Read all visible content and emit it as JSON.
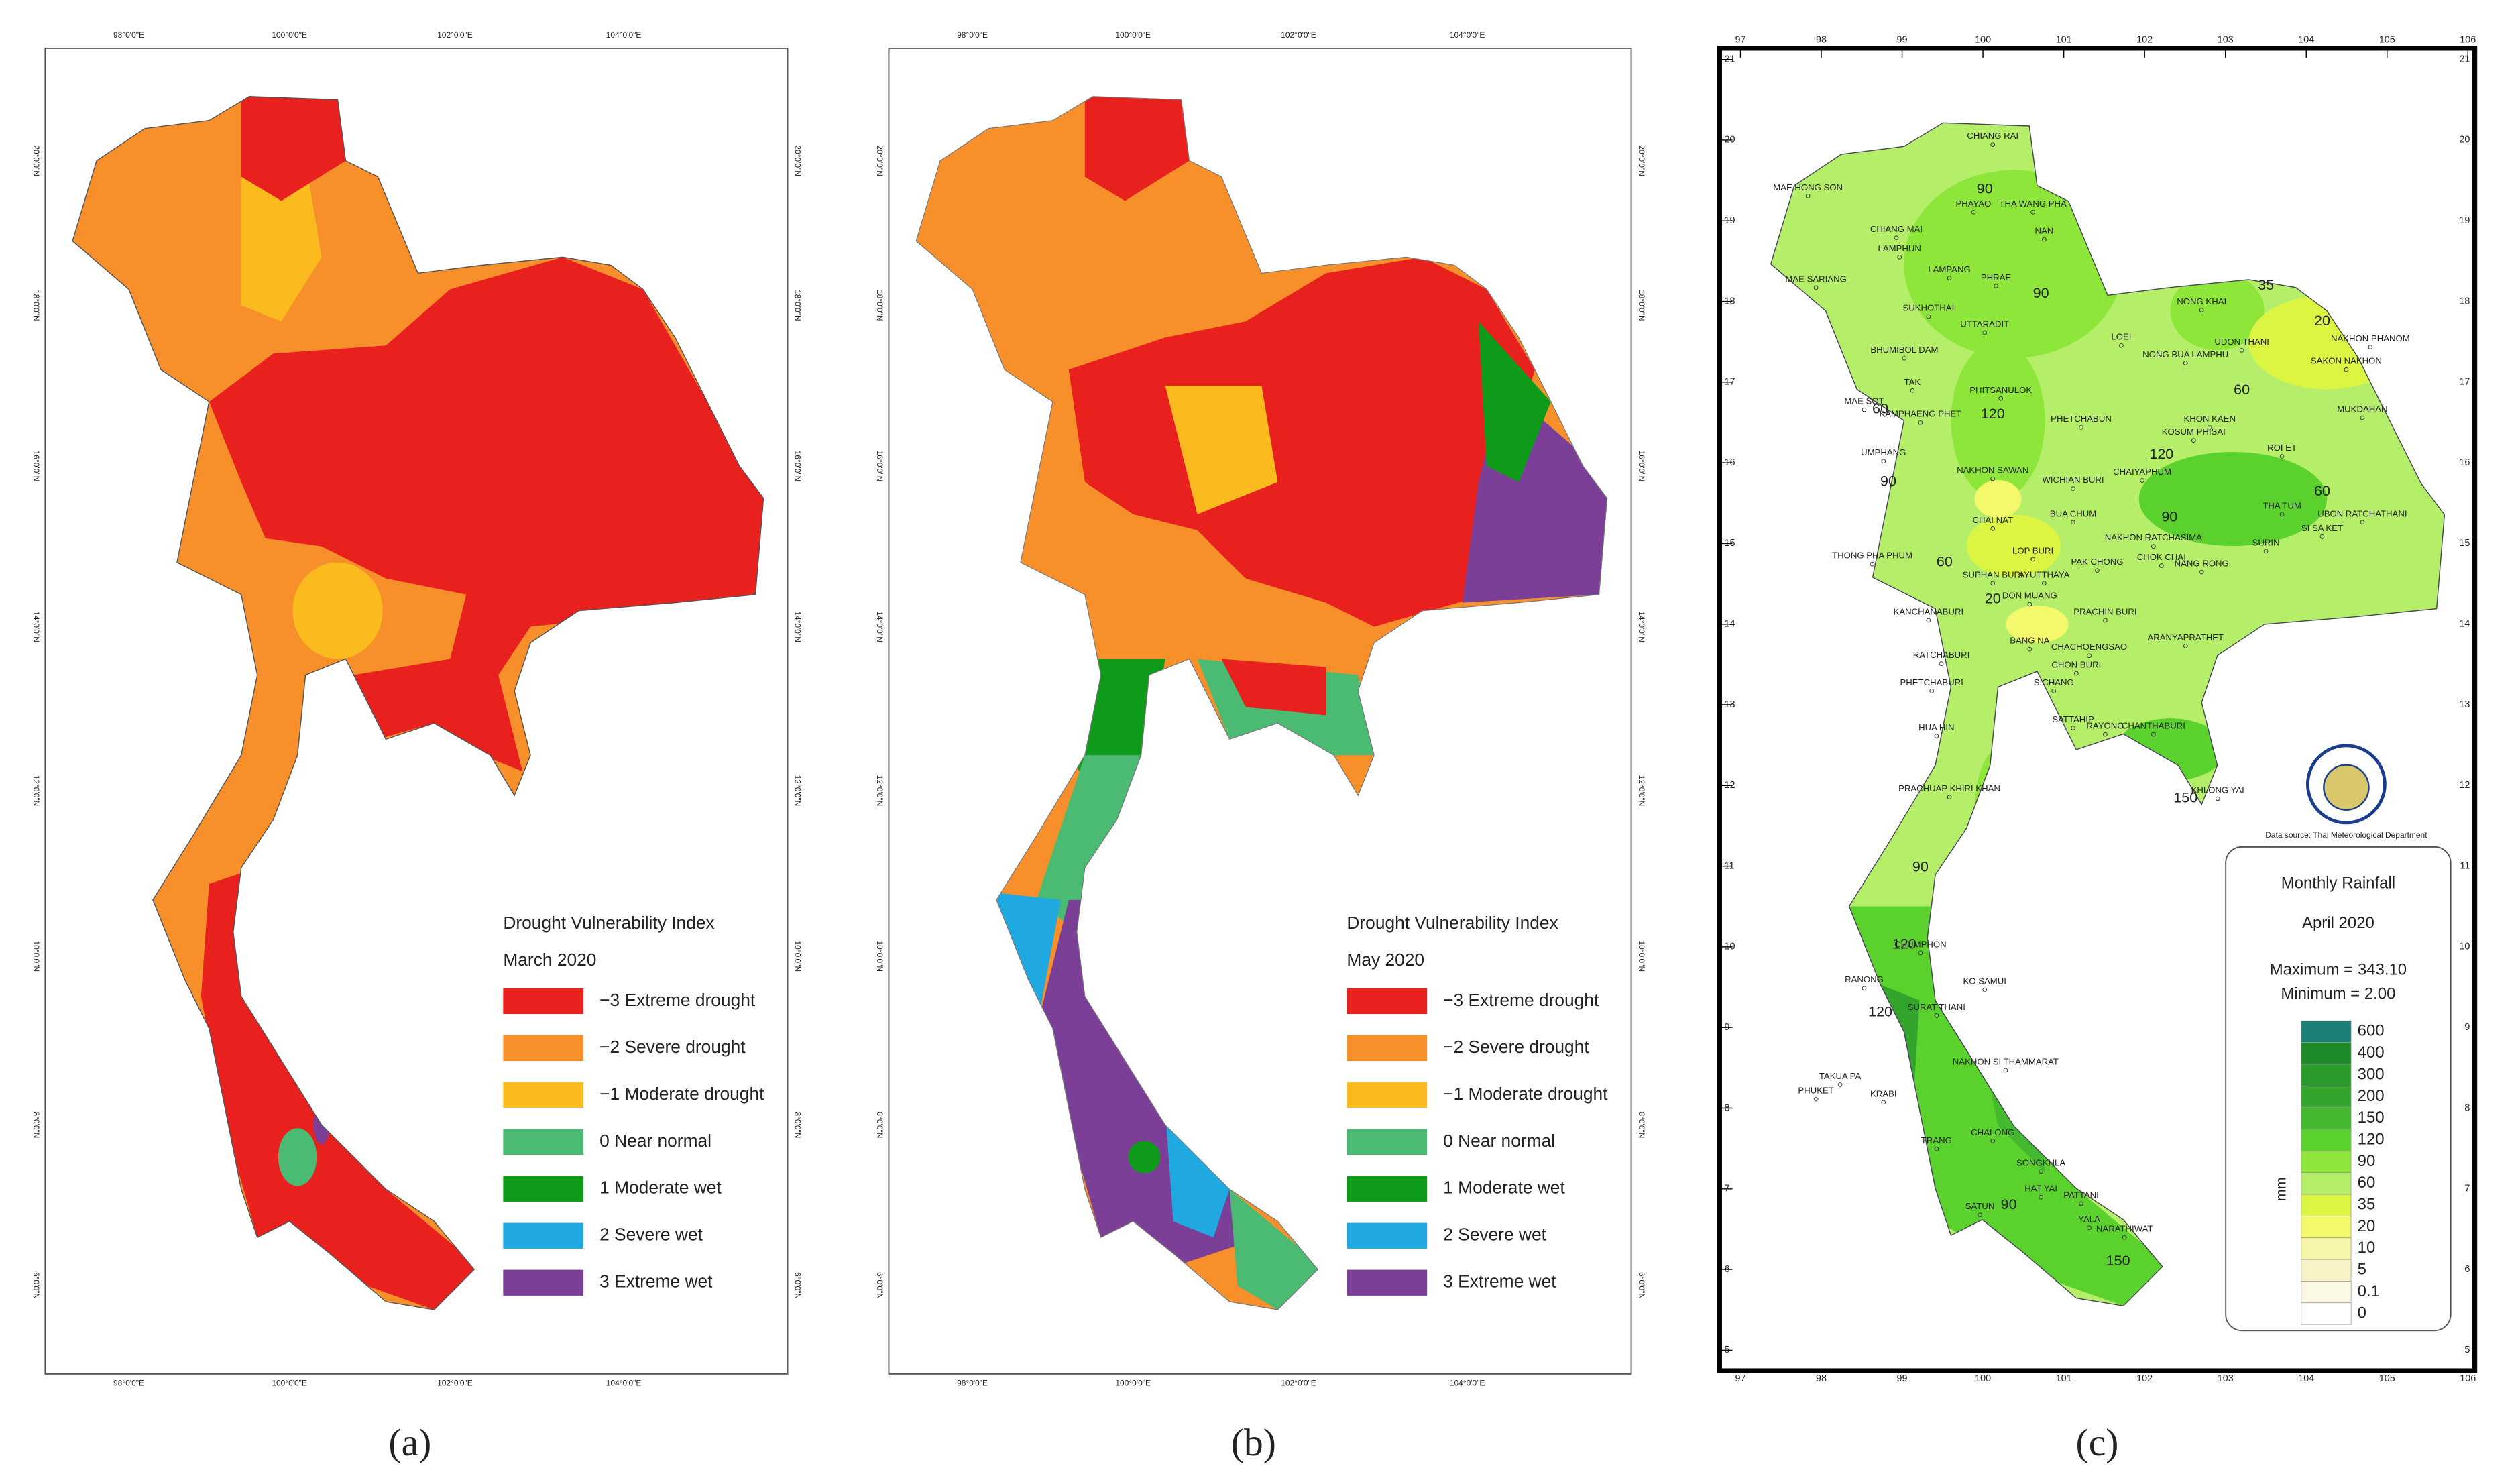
{
  "panels": [
    {
      "caption": "(a)",
      "legend": {
        "title": "Drought Vulnerability Index",
        "subtitle": "March 2020",
        "items": [
          {
            "label": "−3 Extreme drought",
            "color": "#e8201e"
          },
          {
            "label": "−2 Severe drought",
            "color": "#f7902b"
          },
          {
            "label": "−1 Moderate drought",
            "color": "#fbbb1f"
          },
          {
            "label": "0 Near normal",
            "color": "#4bba73"
          },
          {
            "label": "1 Moderate wet",
            "color": "#0e9b1a"
          },
          {
            "label": "2 Severe wet",
            "color": "#20a9e1"
          },
          {
            "label": "3 Extreme wet",
            "color": "#7b3f98"
          }
        ]
      },
      "lon_labels": [
        "98°0'0\"E",
        "100°0'0\"E",
        "102°0'0\"E",
        "104°0'0\"E"
      ],
      "lat_labels": [
        "20°0'0\"N",
        "18°0'0\"N",
        "16°0'0\"N",
        "14°0'0\"N",
        "12°0'0\"N",
        "10°0'0\"N",
        "8°0'0\"N",
        "6°0'0\"N"
      ]
    },
    {
      "caption": "(b)",
      "legend": {
        "title": "Drought Vulnerability Index",
        "subtitle": "May 2020",
        "items": [
          {
            "label": "−3 Extreme drought",
            "color": "#e8201e"
          },
          {
            "label": "−2 Severe drought",
            "color": "#f7902b"
          },
          {
            "label": "−1 Moderate drought",
            "color": "#fbbb1f"
          },
          {
            "label": "0 Near normal",
            "color": "#4bba73"
          },
          {
            "label": "1 Moderate wet",
            "color": "#0e9b1a"
          },
          {
            "label": "2 Severe wet",
            "color": "#20a9e1"
          },
          {
            "label": "3 Extreme wet",
            "color": "#7b3f98"
          }
        ]
      },
      "lon_labels": [
        "98°0'0\"E",
        "100°0'0\"E",
        "102°0'0\"E",
        "104°0'0\"E"
      ],
      "lat_labels": [
        "20°0'0\"N",
        "18°0'0\"N",
        "16°0'0\"N",
        "14°0'0\"N",
        "12°0'0\"N",
        "10°0'0\"N",
        "8°0'0\"N",
        "6°0'0\"N"
      ]
    },
    {
      "caption": "(c)",
      "legend": {
        "title": "Monthly Rainfall",
        "subtitle": "April 2020",
        "maximum": "Maximum = 343.10",
        "minimum": "Minimum = 2.00",
        "unit": "mm",
        "scale": [
          {
            "label": 600,
            "color": "#1b7f78"
          },
          {
            "label": 400,
            "color": "#1f8a2a"
          },
          {
            "label": 300,
            "color": "#2a9a2a"
          },
          {
            "label": 200,
            "color": "#33a52c"
          },
          {
            "label": 150,
            "color": "#44b82e"
          },
          {
            "label": 120,
            "color": "#5bd12e"
          },
          {
            "label": 90,
            "color": "#8ee63a"
          },
          {
            "label": 60,
            "color": "#b5ef6a"
          },
          {
            "label": 35,
            "color": "#dcf542"
          },
          {
            "label": 20,
            "color": "#f3f96b"
          },
          {
            "label": 10,
            "color": "#f7f5a8"
          },
          {
            "label": 5,
            "color": "#f8f4c8"
          },
          {
            "label": 0.1,
            "color": "#fbf9e6"
          },
          {
            "label": 0,
            "color": "#ffffff"
          }
        ]
      },
      "source": "Data source: Thai Meteorological Department",
      "lon_ticks": [
        97,
        98,
        99,
        100,
        101,
        102,
        103,
        104,
        105,
        106
      ],
      "lat_ticks": [
        21,
        20,
        19,
        18,
        17,
        16,
        15,
        14,
        13,
        12,
        11,
        10,
        9,
        8,
        7,
        6,
        5
      ],
      "cities": [
        "CHIANG RAI",
        "MAE HONG SON",
        "PHAYAO",
        "THA WANG PHA",
        "NAN",
        "CHIANG MAI",
        "LAMPHUN",
        "LAMPANG",
        "MAE SARIANG",
        "PHRAE",
        "SUKHOTHAI",
        "UTTARADIT",
        "BHUMIBOL DAM",
        "NONG KHAI",
        "LOEI",
        "UDON THANI",
        "NAKHON PHANOM",
        "NONG BUA LAMPHU",
        "SAKON NAKHON",
        "TAK",
        "PHITSANULOK",
        "MAE SOT",
        "PHETCHABUN",
        "KHON KAEN",
        "MUKDAHAN",
        "KAMPHAENG PHET",
        "KOSUM PHISAI",
        "ROI ET",
        "UMPHANG",
        "NAKHON SAWAN",
        "CHAIYAPHUM",
        "WICHIAN BURI",
        "THA TUM",
        "UBON RATCHATHANI",
        "CHAI NAT",
        "BUA CHUM",
        "NAKHON RATCHASIMA",
        "SI SA KET",
        "THONG PHA PHUM",
        "LOP BURI",
        "SURIN",
        "CHOK CHAI",
        "NANG RONG",
        "SUPHAN BURI",
        "AYUTTHAYA",
        "PAK CHONG",
        "KANCHANABURI",
        "DON MUANG",
        "PRACHIN BURI",
        "BANG NA",
        "RATCHABURI",
        "CHACHOENGSAO",
        "ARANYAPRATHET",
        "CHON BURI",
        "PHETCHABURI",
        "SICHANG",
        "RAYONG",
        "CHANTHABURI",
        "HUA HIN",
        "SATTAHIP",
        "KHLONG YAI",
        "PRACHUAP KHIRI KHAN",
        "CHUMPHON",
        "RANONG",
        "KO SAMUI",
        "SURAT THANI",
        "TAKUA PA",
        "NAKHON SI THAMMARAT",
        "PHUKET",
        "KRABI",
        "CHALONG",
        "TRANG",
        "SONGKHLA",
        "HAT YAI",
        "PATTANI",
        "SATUN",
        "YALA",
        "NARATHIWAT"
      ],
      "contours": [
        90,
        35,
        20,
        60,
        120,
        90,
        60,
        60,
        90,
        60,
        20,
        120,
        90,
        120,
        120,
        90,
        150,
        150,
        90
      ]
    }
  ]
}
